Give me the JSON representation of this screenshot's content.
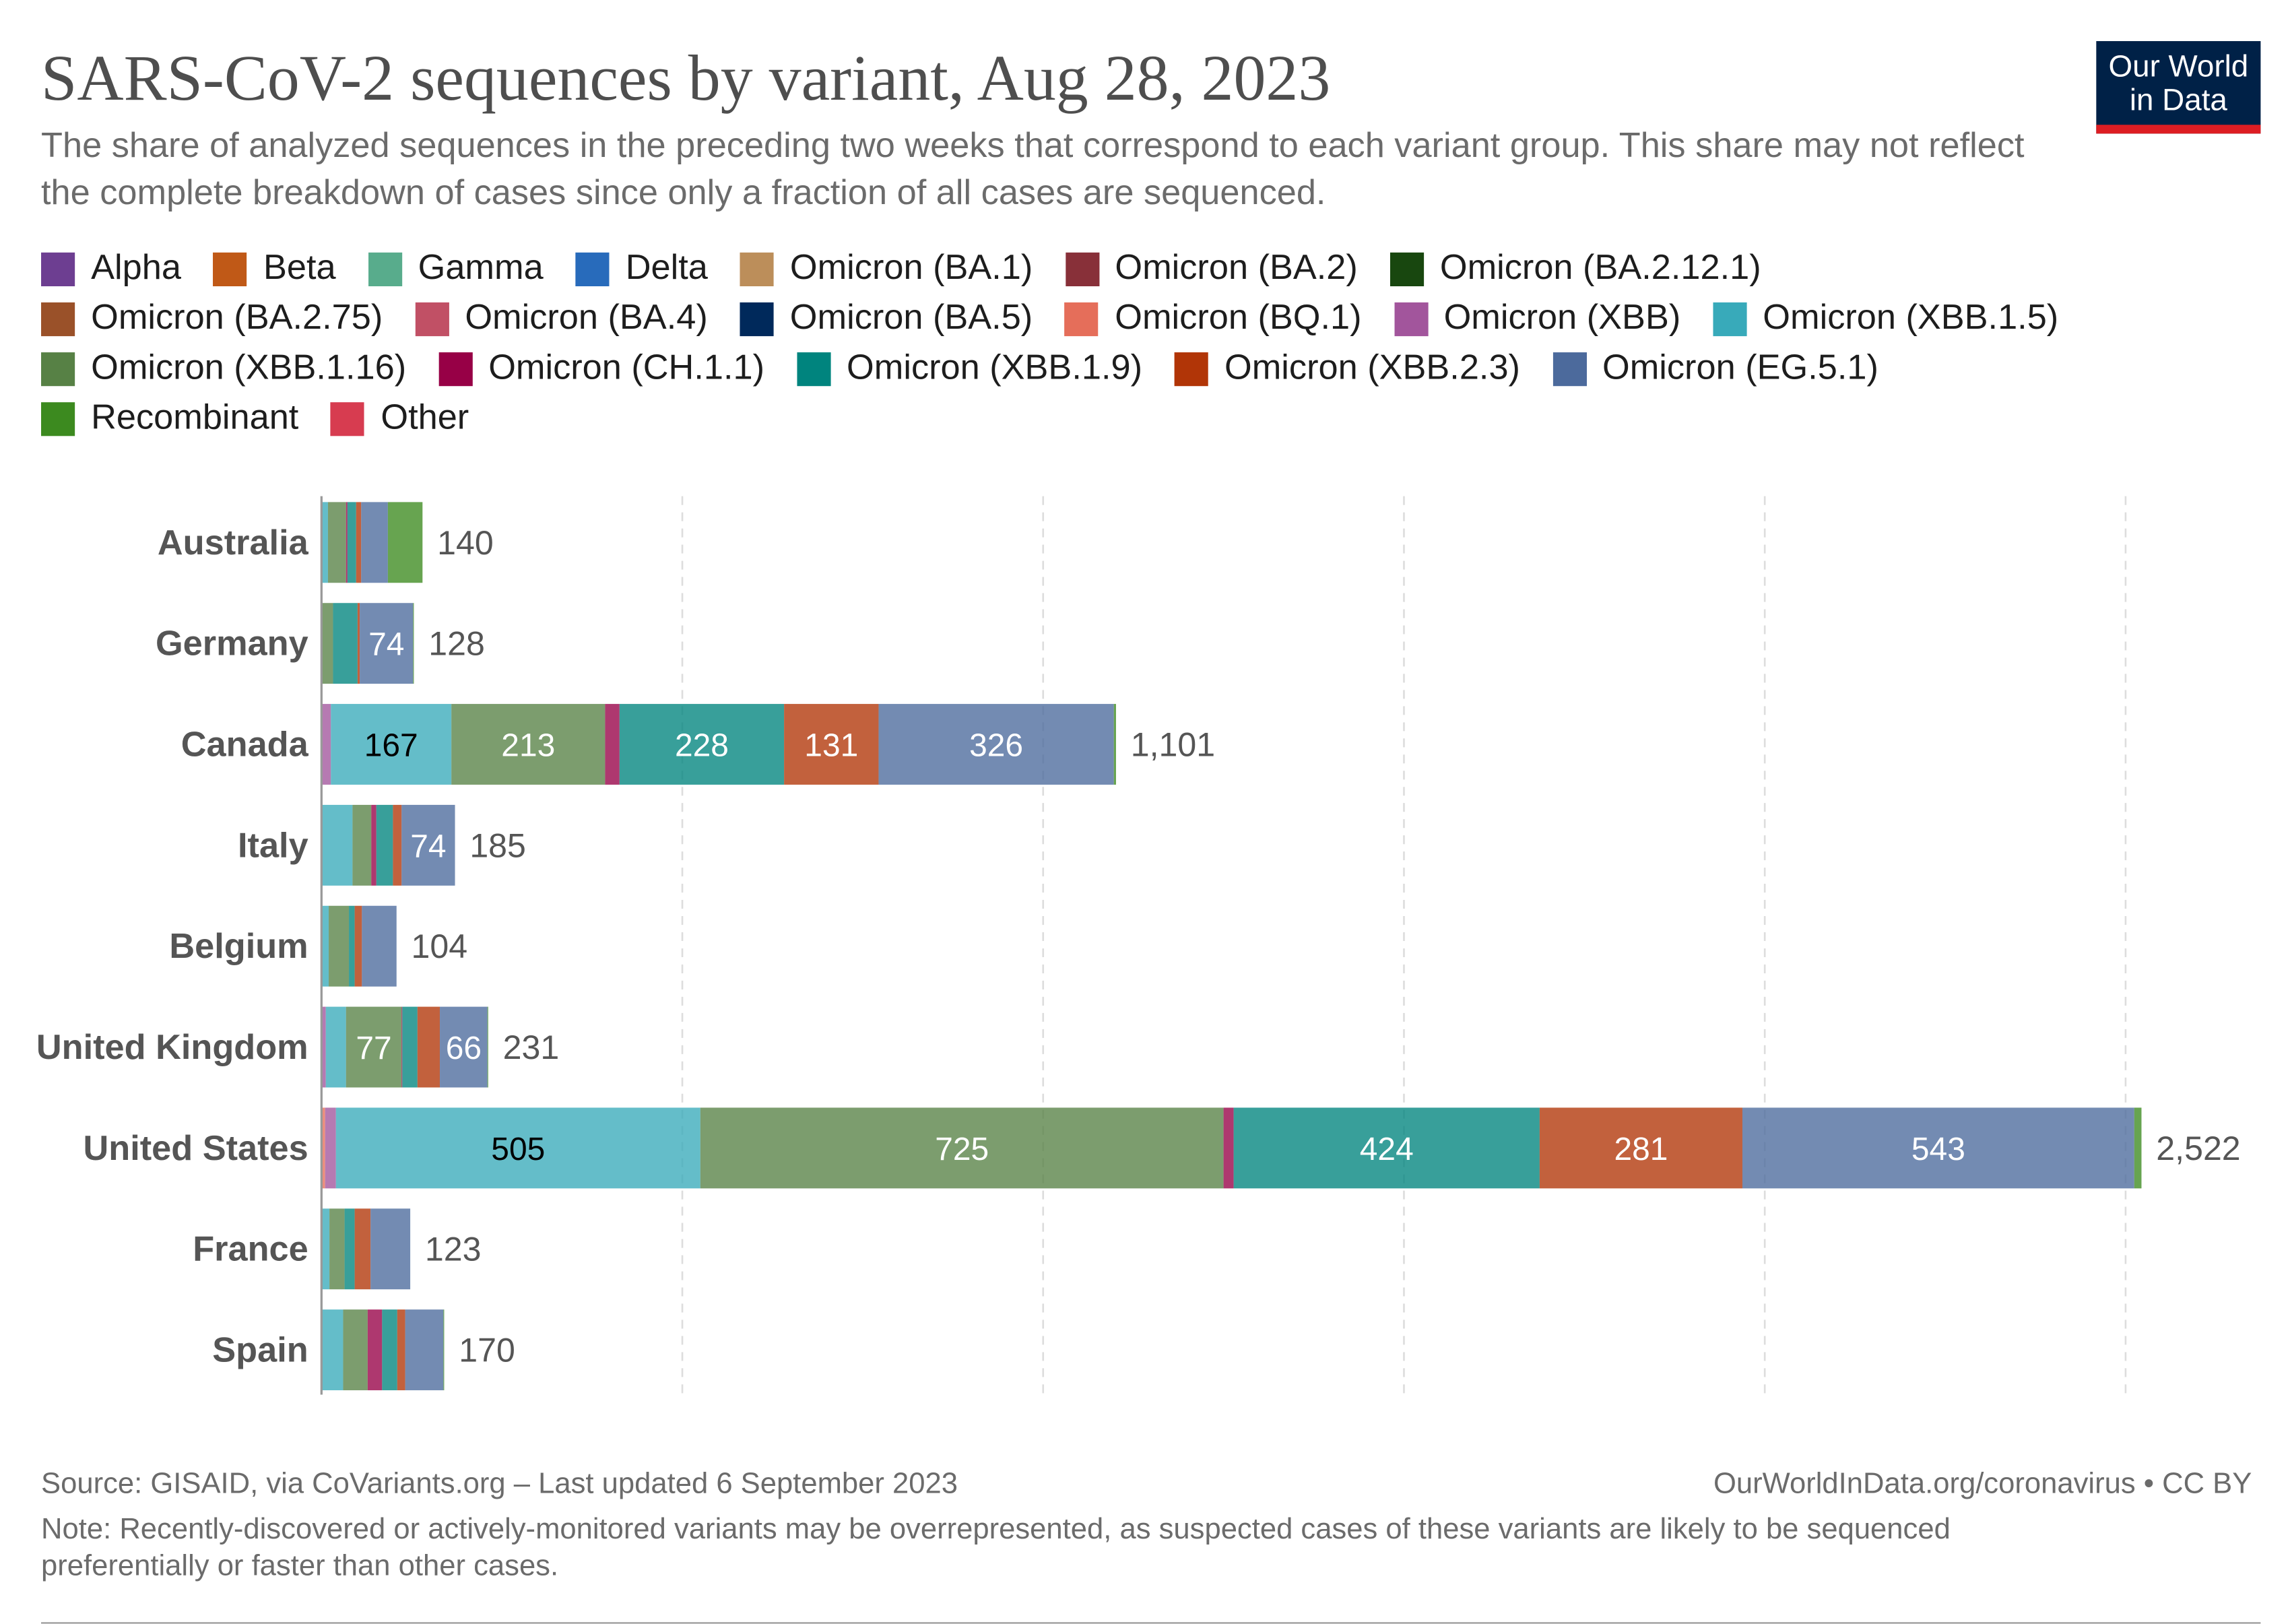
{
  "title": "SARS-CoV-2 sequences by variant, Aug 28, 2023",
  "subtitle": "The share of analyzed sequences in the preceding two weeks that correspond to each variant group. This share may not reflect the complete breakdown of cases since only a fraction of all cases are sequenced.",
  "logo": {
    "line1": "Our World",
    "line2": "in Data"
  },
  "footer": {
    "source": "Source: GISAID, via CoVariants.org – Last updated 6 September 2023",
    "link": "OurWorldInData.org/coronavirus • CC BY",
    "note": "Note: Recently-discovered or actively-monitored variants may be overrepresented, as suspected cases of these variants are likely to be sequenced preferentially or faster than other cases."
  },
  "chart_data": {
    "type": "bar",
    "orientation": "horizontal-stacked",
    "xlim": [
      0,
      2500
    ],
    "grid": true,
    "legend_placement": "top",
    "series": [
      {
        "name": "Alpha",
        "color": "#6D3E91"
      },
      {
        "name": "Beta",
        "color": "#C05917"
      },
      {
        "name": "Gamma",
        "color": "#58AC8C"
      },
      {
        "name": "Delta",
        "color": "#286BBB"
      },
      {
        "name": "Omicron (BA.1)",
        "color": "#BC8E5A"
      },
      {
        "name": "Omicron (BA.2)",
        "color": "#883039"
      },
      {
        "name": "Omicron (BA.2.12.1)",
        "color": "#18470F"
      },
      {
        "name": "Omicron (BA.2.75)",
        "color": "#9A5129"
      },
      {
        "name": "Omicron (BA.4)",
        "color": "#C15065"
      },
      {
        "name": "Omicron (BA.5)",
        "color": "#00295B"
      },
      {
        "name": "Omicron (BQ.1)",
        "color": "#E56E5A"
      },
      {
        "name": "Omicron (XBB)",
        "color": "#A2559C"
      },
      {
        "name": "Omicron (XBB.1.5)",
        "color": "#38AABA"
      },
      {
        "name": "Omicron (XBB.1.16)",
        "color": "#578145"
      },
      {
        "name": "Omicron (CH.1.1)",
        "color": "#970046"
      },
      {
        "name": "Omicron (XBB.1.9)",
        "color": "#00847E"
      },
      {
        "name": "Omicron (XBB.2.3)",
        "color": "#B13507"
      },
      {
        "name": "Omicron (EG.5.1)",
        "color": "#4C6A9C"
      },
      {
        "name": "Recombinant",
        "color": "#3C8A1F"
      },
      {
        "name": "Other",
        "color": "#D73C50"
      }
    ],
    "categories": [
      "Australia",
      "Germany",
      "Canada",
      "Italy",
      "Belgium",
      "United Kingdom",
      "United States",
      "France",
      "Spain"
    ],
    "totals": [
      "140",
      "128",
      "1,101",
      "185",
      "104",
      "231",
      "2,522",
      "123",
      "170"
    ],
    "values": [
      {
        "Omicron (XBB.1.5)": 9,
        "Omicron (XBB.1.16)": 25,
        "Omicron (CH.1.1)": 2,
        "Omicron (XBB.1.9)": 12,
        "Omicron (XBB.2.3)": 7,
        "Omicron (EG.5.1)": 37,
        "Recombinant": 48
      },
      {
        "Omicron (XBB.1.16)": 16,
        "Omicron (XBB.1.9)": 34,
        "Omicron (XBB.2.3)": 3,
        "Omicron (EG.5.1)": 74,
        "Recombinant": 1
      },
      {
        "Omicron (XBB)": 13,
        "Omicron (XBB.1.5)": 167,
        "Omicron (XBB.1.16)": 213,
        "Omicron (CH.1.1)": 20,
        "Omicron (XBB.1.9)": 228,
        "Omicron (XBB.2.3)": 131,
        "Omicron (EG.5.1)": 326,
        "Recombinant": 3
      },
      {
        "Omicron (XBB.1.5)": 43,
        "Omicron (XBB.1.16)": 26,
        "Omicron (CH.1.1)": 7,
        "Omicron (XBB.1.9)": 23,
        "Omicron (XBB.2.3)": 12,
        "Omicron (EG.5.1)": 74
      },
      {
        "Omicron (XBB.1.5)": 9,
        "Omicron (XBB.1.16)": 28,
        "Omicron (XBB)": 1,
        "Omicron (XBB.1.9)": 8,
        "Omicron (XBB.2.3)": 10,
        "Omicron (EG.5.1)": 48
      },
      {
        "Omicron (XBB)": 6,
        "Omicron (XBB.1.5)": 28,
        "Omicron (XBB.1.16)": 77,
        "Omicron (CH.1.1)": 1,
        "Omicron (XBB.1.9)": 21,
        "Omicron (XBB.2.3)": 31,
        "Omicron (EG.5.1)": 66,
        "Recombinant": 1
      },
      {
        "Omicron (BQ.1)": 5,
        "Omicron (XBB)": 15,
        "Omicron (XBB.1.5)": 505,
        "Omicron (XBB.1.16)": 725,
        "Omicron (CH.1.1)": 14,
        "Omicron (XBB.1.9)": 424,
        "Omicron (XBB.2.3)": 281,
        "Omicron (EG.5.1)": 543,
        "Recombinant": 10
      },
      {
        "Omicron (XBB)": 1,
        "Omicron (XBB.1.5)": 10,
        "Omicron (XBB.1.16)": 21,
        "Omicron (XBB.1.9)": 14,
        "Omicron (XBB.2.3)": 22,
        "Omicron (EG.5.1)": 55
      },
      {
        "Omicron (XBB.1.5)": 30,
        "Omicron (XBB.1.16)": 34,
        "Omicron (CH.1.1)": 20,
        "Omicron (XBB.1.9)": 21,
        "Omicron (XBB.2.3)": 11,
        "Omicron (EG.5.1)": 53,
        "Recombinant": 1
      }
    ],
    "segment_labels_min": 60
  }
}
